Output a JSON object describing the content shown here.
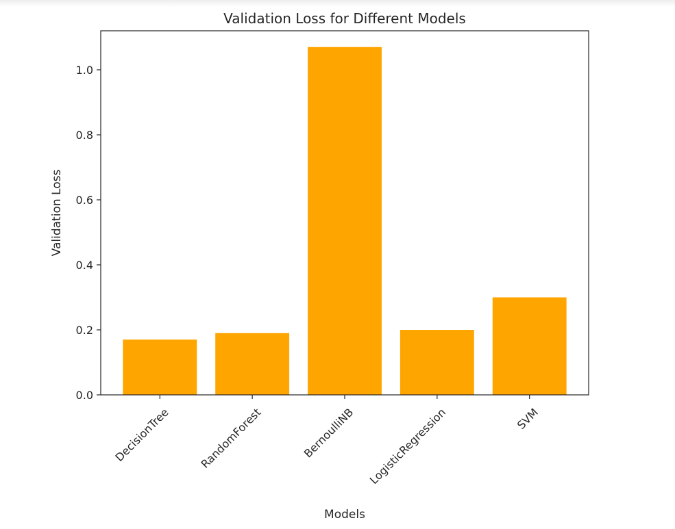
{
  "chart_data": {
    "type": "bar",
    "title": "Validation Loss for Different Models",
    "xlabel": "Models",
    "ylabel": "Validation Loss",
    "categories": [
      "DecisionTree",
      "RandomForest",
      "BernoulliNB",
      "LogisticRegression",
      "SVM"
    ],
    "values": [
      0.17,
      0.19,
      1.07,
      0.2,
      0.3
    ],
    "ylim": [
      0,
      1.12
    ],
    "yticks": [
      "0.0",
      "0.2",
      "0.4",
      "0.6",
      "0.8",
      "1.0"
    ],
    "bar_color": "#ffa500",
    "grid": false,
    "legend": "none"
  }
}
